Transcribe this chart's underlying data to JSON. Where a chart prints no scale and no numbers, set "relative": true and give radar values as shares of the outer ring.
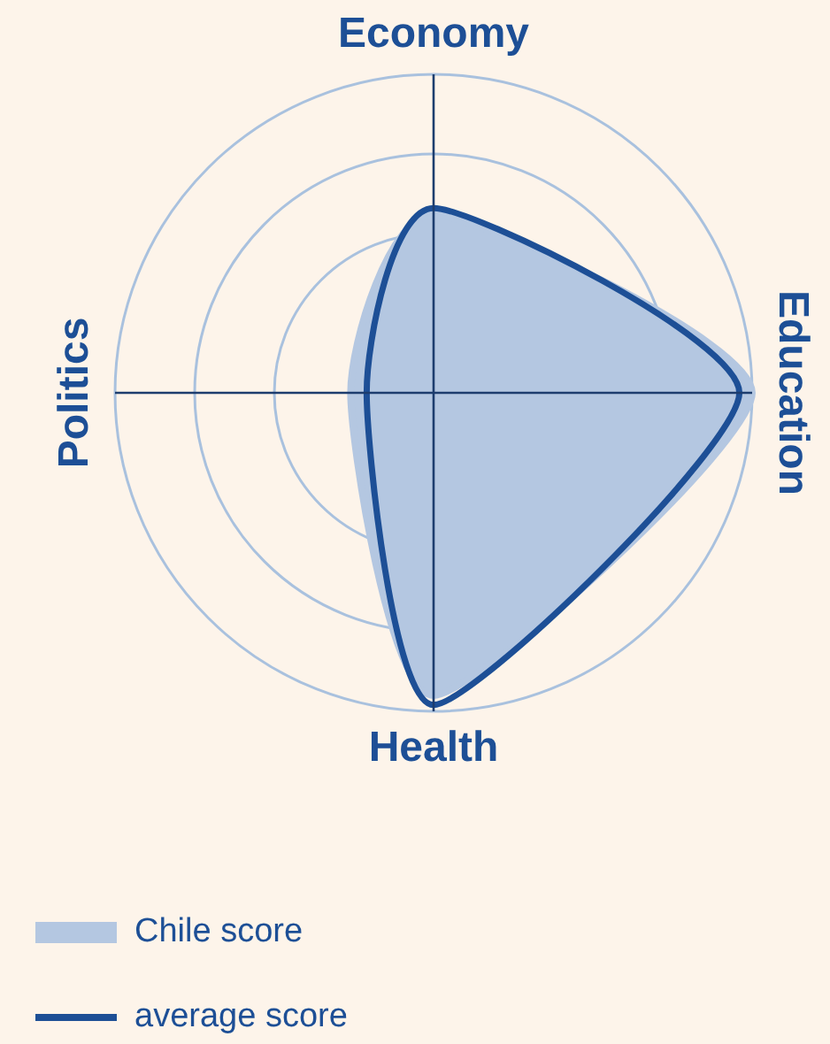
{
  "chart_data": {
    "type": "radar",
    "relative": true,
    "categories": [
      "Economy",
      "Education",
      "Health",
      "Politics"
    ],
    "series": [
      {
        "name": "Chile score",
        "color": "#b4c7e1",
        "type": "area",
        "values": [
          0.56,
          1.0,
          0.95,
          0.26
        ]
      },
      {
        "name": "average score",
        "color": "#1d4f96",
        "values": [
          0.58,
          0.96,
          0.98,
          0.21
        ]
      }
    ],
    "grid": true,
    "legend": "bottom left"
  }
}
